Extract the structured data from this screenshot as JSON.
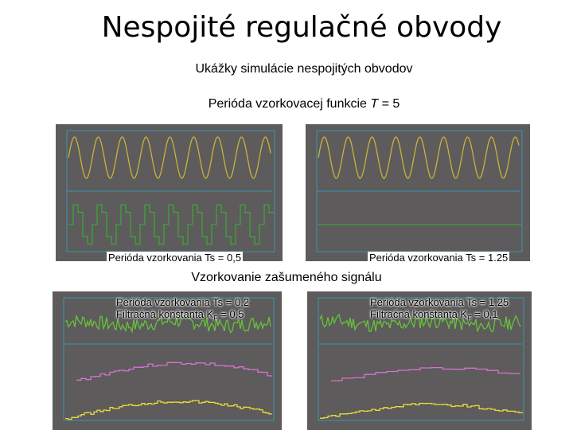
{
  "header": {
    "title": "Nespojité regulačné obvody",
    "subtitle": "Ukážky simulácie nespojitých obvodov",
    "period_prefix": "Perióda vzorkovacej funkcie ",
    "period_var": "T",
    "period_suffix": " = 5",
    "noisy_heading": "Vzorkovanie zašumeného signálu"
  },
  "panels": {
    "top_left": {
      "label": "Perióda vzorkovania Ts = 0,5"
    },
    "top_right": {
      "label": "Perióda vzorkovania Ts = 1.25"
    },
    "bottom_left": {
      "line1": "Perióda vzorkovania Ts = 0,2",
      "line2_pre": "Filtračná konštanta K",
      "line2_sub": "F",
      "line2_post": " = 0,5"
    },
    "bottom_right": {
      "line1": "Perióda vzorkovania Ts = 1,25",
      "line2_pre": "Filtračná konštanta K",
      "line2_sub": "F",
      "line2_post": " = 0,1"
    }
  },
  "colors": {
    "scope_bg": "#5d5b5b",
    "sine": "#c9b23c",
    "square": "#3fa33a",
    "axis": "#3b95b0",
    "noise": "#66c23a",
    "pink": "#d872d2",
    "yellow": "#e7de3a"
  }
}
